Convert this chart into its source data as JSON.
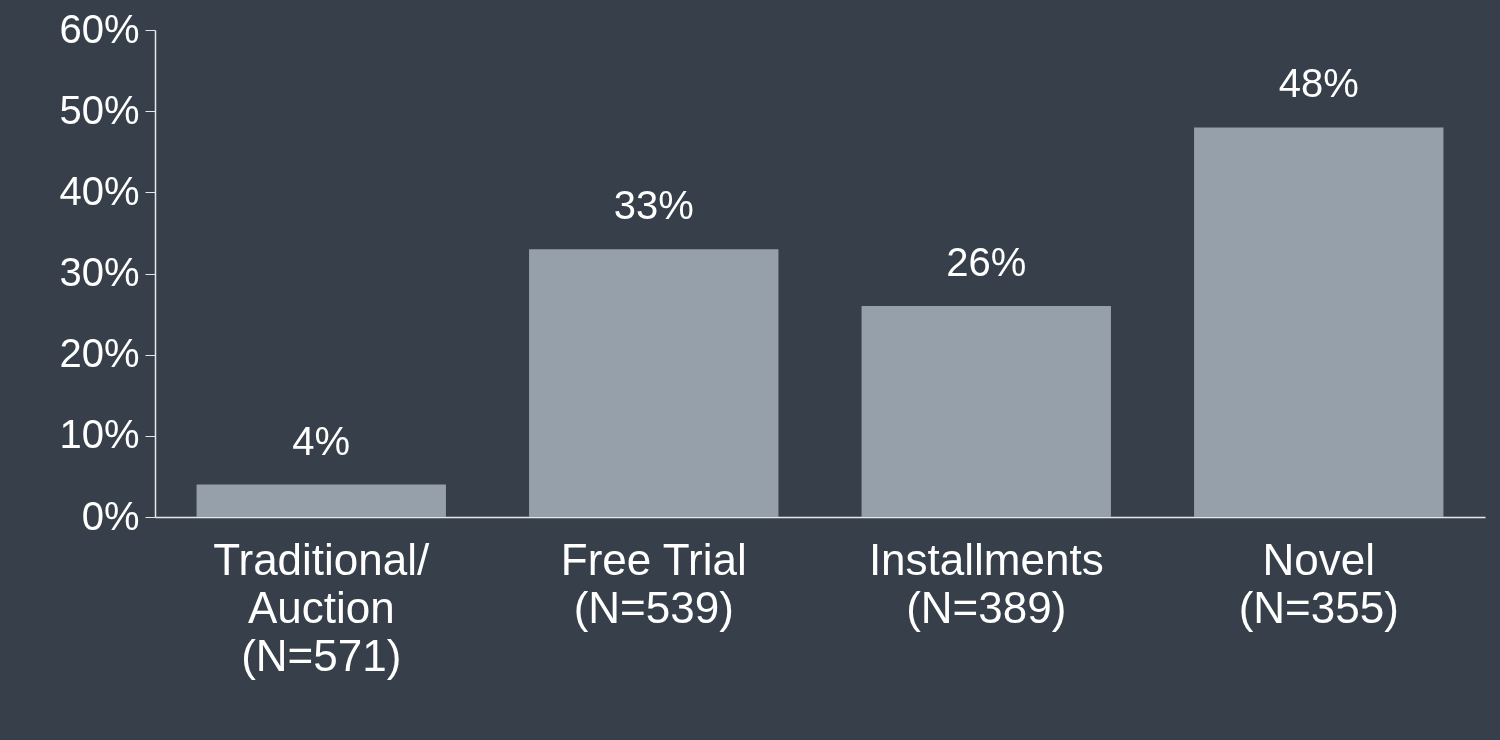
{
  "chart_data": {
    "type": "bar",
    "categories": [
      "Traditional/\nAuction\n(N=571)",
      "Free Trial\n(N=539)",
      "Installments\n(N=389)",
      "Novel\n(N=355)"
    ],
    "values": [
      4,
      33,
      26,
      48
    ],
    "value_labels": [
      "4%",
      "33%",
      "26%",
      "48%"
    ],
    "color": "#96a0ab",
    "ylim": [
      0,
      60
    ],
    "yticks": [
      {
        "value": 0,
        "label": "0%"
      },
      {
        "value": 10,
        "label": "10%"
      },
      {
        "value": 20,
        "label": "20%"
      },
      {
        "value": 30,
        "label": "30%"
      },
      {
        "value": 40,
        "label": "40%"
      },
      {
        "value": 50,
        "label": "50%"
      },
      {
        "value": 60,
        "label": "60%"
      }
    ],
    "grid": false
  }
}
